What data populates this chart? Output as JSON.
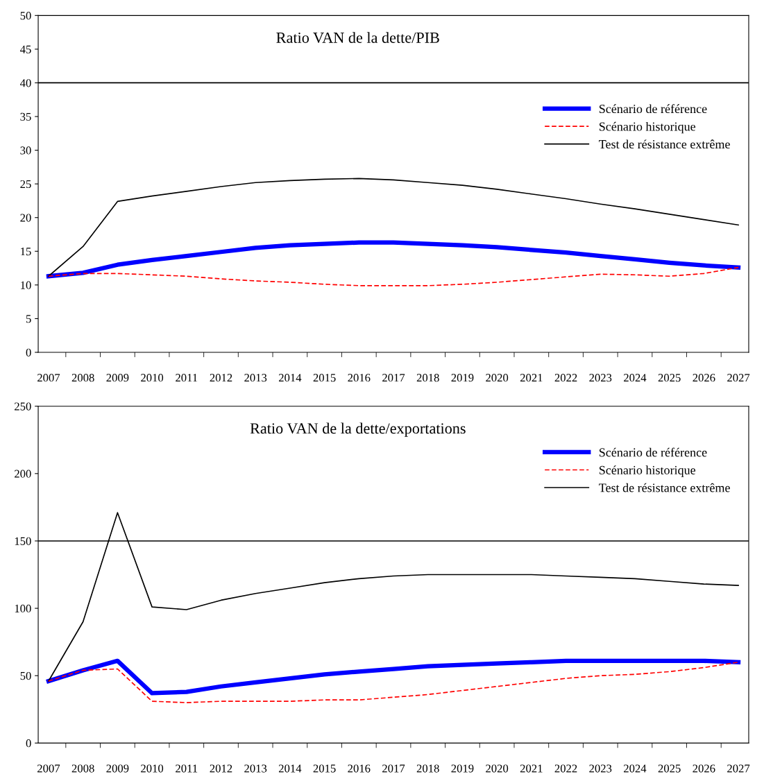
{
  "chart_data": [
    {
      "type": "line",
      "title": "Ratio VAN de la dette/PIB",
      "categories": [
        "2007",
        "2008",
        "2009",
        "2010",
        "2011",
        "2012",
        "2013",
        "2014",
        "2015",
        "2016",
        "2017",
        "2018",
        "2019",
        "2020",
        "2021",
        "2022",
        "2023",
        "2024",
        "2025",
        "2026",
        "2027"
      ],
      "series": [
        {
          "name": "Scénario de référence",
          "color": "#0000ff",
          "line_style": "solid",
          "values": [
            11.3,
            11.8,
            13,
            13.7,
            14.3,
            14.9,
            15.5,
            15.9,
            16.1,
            16.3,
            16.3,
            16.1,
            15.9,
            15.6,
            15.2,
            14.8,
            14.3,
            13.8,
            13.3,
            12.9,
            12.6
          ]
        },
        {
          "name": "Scénario historique",
          "color": "#ff0000",
          "line_style": "dashed",
          "values": [
            11.3,
            11.7,
            11.7,
            11.5,
            11.3,
            10.9,
            10.6,
            10.4,
            10.1,
            9.9,
            9.9,
            9.9,
            10.1,
            10.4,
            10.8,
            11.2,
            11.6,
            11.5,
            11.3,
            11.7,
            12.6
          ]
        },
        {
          "name": "Test de résistance extrême",
          "color": "#000000",
          "line_style": "solid",
          "values": [
            11.3,
            15.7,
            22.4,
            23.2,
            23.9,
            24.6,
            25.2,
            25.5,
            25.7,
            25.8,
            25.6,
            25.2,
            24.8,
            24.2,
            23.5,
            22.8,
            22.0,
            21.3,
            20.5,
            19.7,
            18.9
          ]
        }
      ],
      "ylim": [
        0,
        50
      ],
      "yticks": [
        0,
        5,
        10,
        15,
        20,
        25,
        30,
        35,
        40,
        45,
        50
      ],
      "ref_lines": [
        {
          "axis": "y",
          "value": 40,
          "color": "#000000"
        }
      ],
      "legend": "top right",
      "grid": false,
      "marker": "none"
    },
    {
      "type": "line",
      "title": "Ratio VAN de la dette/exportations",
      "categories": [
        "2007",
        "2008",
        "2009",
        "2010",
        "2011",
        "2012",
        "2013",
        "2014",
        "2015",
        "2016",
        "2017",
        "2018",
        "2019",
        "2020",
        "2021",
        "2022",
        "2023",
        "2024",
        "2025",
        "2026",
        "2027"
      ],
      "series": [
        {
          "name": "Scénario de référence",
          "color": "#0000ff",
          "line_style": "solid",
          "values": [
            46,
            54,
            61,
            37,
            38,
            42,
            45,
            48,
            51,
            53,
            55,
            57,
            58,
            59,
            60,
            61,
            61,
            61,
            61,
            61,
            60
          ]
        },
        {
          "name": "Scénario historique",
          "color": "#ff0000",
          "line_style": "dashed",
          "values": [
            46,
            54,
            55,
            31,
            30,
            31,
            31,
            31,
            32,
            32,
            34,
            36,
            39,
            42,
            45,
            48,
            50,
            51,
            53,
            56,
            60
          ]
        },
        {
          "name": "Test de résistance extrême",
          "color": "#000000",
          "line_style": "solid",
          "values": [
            46,
            90,
            171,
            101,
            99,
            106,
            111,
            115,
            119,
            122,
            124,
            125,
            125,
            125,
            125,
            124,
            123,
            122,
            120,
            118,
            117
          ]
        }
      ],
      "ylim": [
        0,
        250
      ],
      "yticks": [
        0,
        50,
        100,
        150,
        200,
        250
      ],
      "ref_lines": [
        {
          "axis": "y",
          "value": 150,
          "color": "#000000"
        }
      ],
      "legend": "top right",
      "grid": false,
      "marker": "none"
    }
  ]
}
